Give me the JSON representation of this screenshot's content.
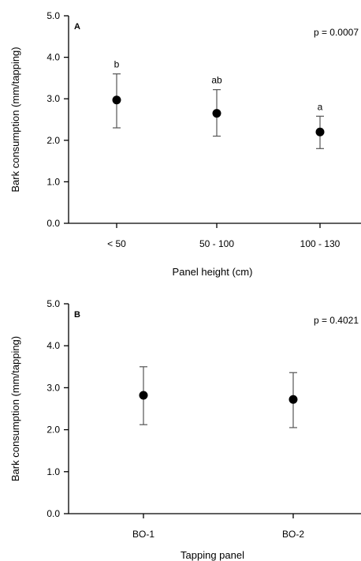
{
  "chart_data": [
    {
      "type": "scatter",
      "panel_label": "A",
      "annotation": "p = 0.0007",
      "xlabel": "Panel height (cm)",
      "ylabel": "Bark consumption (mm/tapping)",
      "categories": [
        "< 50",
        "50 - 100",
        "100 - 130"
      ],
      "values": [
        2.97,
        2.65,
        2.2
      ],
      "error_low": [
        2.3,
        2.1,
        1.8
      ],
      "error_high": [
        3.6,
        3.22,
        2.58
      ],
      "group_letters": [
        "b",
        "ab",
        "a"
      ],
      "ylim": [
        0,
        5
      ],
      "yticks": [
        "0.0",
        "1.0",
        "2.0",
        "3.0",
        "4.0",
        "5.0"
      ],
      "grid": false
    },
    {
      "type": "scatter",
      "panel_label": "B",
      "annotation": "p = 0.4021",
      "xlabel": "Tapping panel",
      "ylabel": "Bark consumption (mm/tapping)",
      "categories": [
        "BO-1",
        "BO-2"
      ],
      "values": [
        2.82,
        2.72
      ],
      "error_low": [
        2.12,
        2.05
      ],
      "error_high": [
        3.5,
        3.36
      ],
      "ylim": [
        0,
        5
      ],
      "yticks": [
        "0.0",
        "1.0",
        "2.0",
        "3.0",
        "4.0",
        "5.0"
      ],
      "grid": false
    }
  ]
}
